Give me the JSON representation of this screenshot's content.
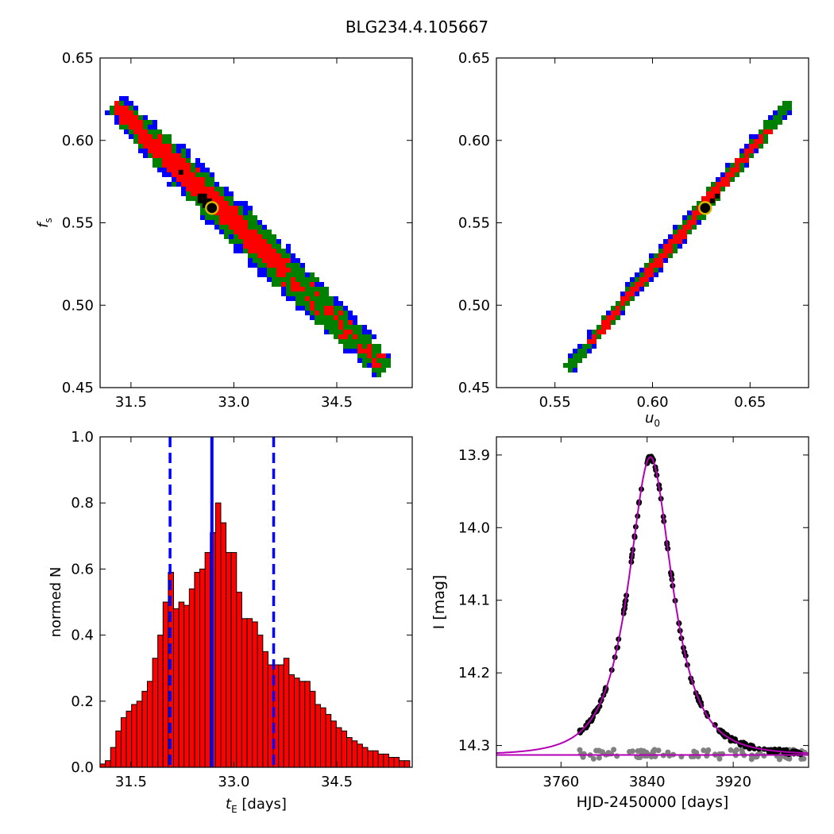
{
  "title": "BLG234.4.105667",
  "chart_data": [
    {
      "panel": "top-left",
      "type": "heatmap",
      "xlabel": "",
      "ylabel": "f_s",
      "xlim": [
        31.05,
        35.6
      ],
      "ylim": [
        0.45,
        0.65
      ],
      "xticks": [
        "31.5",
        "33.0",
        "34.5"
      ],
      "yticks": [
        "0.45",
        "0.50",
        "0.55",
        "0.60",
        "0.65"
      ],
      "region_colors": [
        "#0000ff",
        "#008000",
        "#ff0000",
        "#000000"
      ],
      "band": {
        "start": [
          31.25,
          0.622
        ],
        "end": [
          35.2,
          0.462
        ]
      },
      "best_fit": {
        "x": 32.68,
        "y": 0.559
      }
    },
    {
      "panel": "top-right",
      "type": "heatmap",
      "xlabel": "u_0",
      "ylabel": "",
      "xlim": [
        0.52,
        0.68
      ],
      "ylim": [
        0.45,
        0.65
      ],
      "xticks": [
        "0.55",
        "0.60",
        "0.65"
      ],
      "yticks": [
        "0.45",
        "0.50",
        "0.55",
        "0.60",
        "0.65"
      ],
      "region_colors": [
        "#0000ff",
        "#008000",
        "#ff0000",
        "#000000"
      ],
      "band": {
        "start": [
          0.5565,
          0.461
        ],
        "end": [
          0.6705,
          0.623
        ]
      },
      "best_fit": {
        "x": 0.627,
        "y": 0.559
      }
    },
    {
      "panel": "bottom-left",
      "type": "bar",
      "xlabel": "t_E [days]",
      "ylabel": "normed N",
      "xlim": [
        31.05,
        35.6
      ],
      "ylim": [
        0.0,
        1.0
      ],
      "xticks": [
        "31.5",
        "33.0",
        "34.5"
      ],
      "yticks": [
        "0.0",
        "0.2",
        "0.4",
        "0.6",
        "0.8",
        "1.0"
      ],
      "bin_start": 31.05,
      "bin_width": 0.0765,
      "values": [
        0.01,
        0.02,
        0.06,
        0.11,
        0.15,
        0.17,
        0.19,
        0.2,
        0.23,
        0.26,
        0.33,
        0.4,
        0.5,
        0.59,
        0.48,
        0.5,
        0.49,
        0.54,
        0.59,
        0.6,
        0.65,
        0.71,
        0.8,
        0.74,
        0.65,
        0.65,
        0.53,
        0.45,
        0.45,
        0.44,
        0.4,
        0.35,
        0.31,
        0.31,
        0.31,
        0.33,
        0.28,
        0.27,
        0.26,
        0.26,
        0.23,
        0.19,
        0.18,
        0.16,
        0.14,
        0.12,
        0.11,
        0.09,
        0.08,
        0.07,
        0.06,
        0.05,
        0.05,
        0.04,
        0.04,
        0.03,
        0.03,
        0.02,
        0.02,
        0.02,
        0.01,
        0.01,
        0.01
      ],
      "bar_color": "#ff0000",
      "vlines": [
        {
          "x": 32.68,
          "style": "solid",
          "color": "#0000ff"
        },
        {
          "x": 32.07,
          "style": "dashed",
          "color": "#0000ff"
        },
        {
          "x": 33.58,
          "style": "dashed",
          "color": "#0000ff"
        }
      ]
    },
    {
      "panel": "bottom-right",
      "type": "scatter",
      "xlabel": "HJD-2450000 [days]",
      "ylabel": "I [mag]",
      "xlim": [
        3700,
        3990
      ],
      "ylim": [
        14.33,
        13.875
      ],
      "xticks": [
        "3760",
        "3840",
        "3920"
      ],
      "yticks": [
        "13.9",
        "14.0",
        "14.1",
        "14.2",
        "14.3"
      ],
      "model": {
        "t0": 3843,
        "tE": 32.7,
        "u0": 0.627,
        "fs": 0.559,
        "baseline": 14.313,
        "color": "#b400b4"
      },
      "baseline_line": {
        "y": 14.313,
        "color": "#b400b4"
      },
      "data_color": "#000000",
      "residual_color": "#808080",
      "data_range": [
        3777,
        3985
      ],
      "residual_range": [
        3775,
        3987
      ]
    }
  ]
}
